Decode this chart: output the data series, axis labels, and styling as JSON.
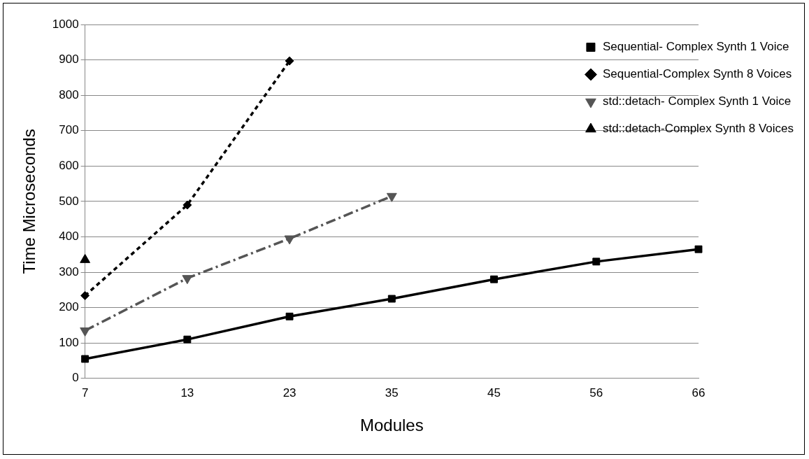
{
  "chart_data": {
    "type": "line",
    "xlabel": "Modules",
    "ylabel": "Time Microseconds",
    "categories": [
      "7",
      "13",
      "23",
      "35",
      "45",
      "56",
      "66"
    ],
    "ylim": [
      0,
      1000
    ],
    "yticks": [
      0,
      100,
      200,
      300,
      400,
      500,
      600,
      700,
      800,
      900,
      1000
    ],
    "grid": "y",
    "legend": "top right",
    "series": [
      {
        "name": "Sequential- Complex Synth 1 Voice",
        "color": "#000000",
        "marker": "square",
        "line_style": "solid",
        "values": [
          55,
          110,
          175,
          225,
          280,
          330,
          365
        ]
      },
      {
        "name": "Sequential-Complex Synth 8 Voices",
        "color": "#000000",
        "marker": "diamond",
        "line_style": "dashed",
        "values": [
          234,
          490,
          897,
          null,
          null,
          null,
          null
        ]
      },
      {
        "name": "std::detach- Complex Synth 1 Voice",
        "color": "#555555",
        "marker": "triangle-down",
        "line_style": "dashdot",
        "values": [
          135,
          283,
          395,
          515,
          null,
          null,
          null
        ]
      },
      {
        "name": "std::detach-Complex Synth 8 Voices",
        "color": "#000000",
        "marker": "triangle",
        "line_style": "solid",
        "values": [
          335,
          null,
          null,
          null,
          null,
          null,
          null
        ]
      }
    ]
  }
}
